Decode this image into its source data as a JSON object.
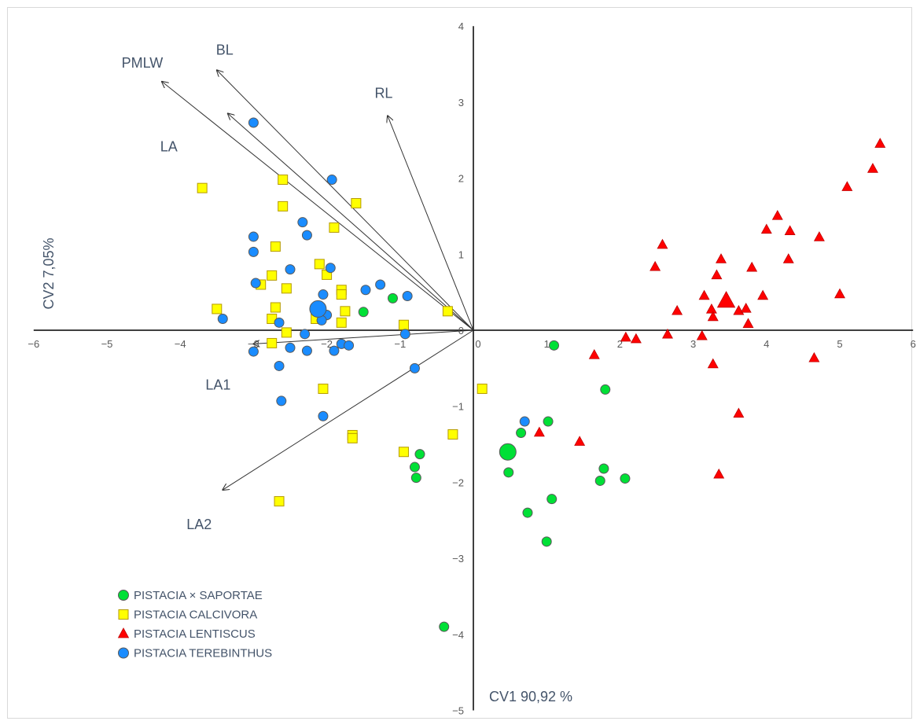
{
  "chart_data": {
    "type": "scatter",
    "xlabel": "CV1 90,92 %",
    "ylabel": "CV2 7,05%",
    "xlim": [
      -6,
      6
    ],
    "ylim": [
      -5,
      4
    ],
    "xticks": [
      "−6",
      "−5",
      "−4",
      "−3",
      "−2",
      "−1",
      "0",
      "1",
      "2",
      "3",
      "4",
      "5",
      "6"
    ],
    "yticks": [
      "4",
      "3",
      "2",
      "1",
      "0",
      "−1",
      "−2",
      "−3",
      "−4",
      "−5"
    ],
    "legend_position": "bottom-left",
    "vectors": [
      {
        "label": "PMLW",
        "x": -4.25,
        "y": 3.27
      },
      {
        "label": "BL",
        "x": -3.5,
        "y": 3.42
      },
      {
        "label": "LA",
        "x": -3.35,
        "y": 2.85
      },
      {
        "label": "RL",
        "x": -1.17,
        "y": 2.82
      },
      {
        "label": "LA1",
        "x": -3.0,
        "y": -0.18
      },
      {
        "label": "LA2",
        "x": -3.42,
        "y": -2.1
      }
    ],
    "series": [
      {
        "name": "PISTACIA × SAPORTAE",
        "color": "#00e036",
        "marker": "circle",
        "points": [
          [
            1.1,
            -0.2
          ],
          [
            1.8,
            -0.78
          ],
          [
            0.65,
            -1.35
          ],
          [
            1.02,
            -1.2
          ],
          [
            0.48,
            -1.87
          ],
          [
            0.74,
            -2.4
          ],
          [
            1.07,
            -2.22
          ],
          [
            1.78,
            -1.82
          ],
          [
            1.73,
            -1.98
          ],
          [
            2.07,
            -1.95
          ],
          [
            1.0,
            -2.78
          ],
          [
            -0.73,
            -1.63
          ],
          [
            -0.8,
            -1.8
          ],
          [
            -0.78,
            -1.94
          ],
          [
            -1.1,
            0.42
          ],
          [
            -1.5,
            0.24
          ],
          [
            -0.4,
            -3.9
          ]
        ],
        "centroid": [
          0.47,
          -1.6
        ]
      },
      {
        "name": "PISTACIA CALCIVORA",
        "color": "#ffff00",
        "marker": "square",
        "points": [
          [
            -3.7,
            1.87
          ],
          [
            -2.6,
            1.98
          ],
          [
            -1.6,
            1.67
          ],
          [
            -2.6,
            1.63
          ],
          [
            -1.9,
            1.35
          ],
          [
            -2.7,
            1.1
          ],
          [
            -2.1,
            0.87
          ],
          [
            -2.0,
            0.73
          ],
          [
            -2.75,
            0.72
          ],
          [
            -2.55,
            0.55
          ],
          [
            -2.9,
            0.6
          ],
          [
            -1.8,
            0.53
          ],
          [
            -1.8,
            0.47
          ],
          [
            -2.7,
            0.3
          ],
          [
            -1.75,
            0.25
          ],
          [
            -2.75,
            0.15
          ],
          [
            -3.5,
            0.28
          ],
          [
            -2.05,
            0.2
          ],
          [
            -2.15,
            0.15
          ],
          [
            -1.8,
            0.1
          ],
          [
            -2.55,
            -0.03
          ],
          [
            -2.75,
            -0.17
          ],
          [
            -0.95,
            0.07
          ],
          [
            -0.35,
            0.25
          ],
          [
            0.12,
            -0.77
          ],
          [
            -2.05,
            -0.77
          ],
          [
            -1.65,
            -1.38
          ],
          [
            -1.65,
            -1.42
          ],
          [
            -0.95,
            -1.6
          ],
          [
            -0.28,
            -1.37
          ],
          [
            -2.65,
            -2.25
          ]
        ],
        "centroid": null
      },
      {
        "name": "PISTACIA LENTISCUS",
        "color": "#ff0000",
        "marker": "triangle",
        "points": [
          [
            5.55,
            2.45
          ],
          [
            5.45,
            2.12
          ],
          [
            5.1,
            1.88
          ],
          [
            4.15,
            1.5
          ],
          [
            4.0,
            1.32
          ],
          [
            4.32,
            1.3
          ],
          [
            4.72,
            1.22
          ],
          [
            2.58,
            1.12
          ],
          [
            3.38,
            0.93
          ],
          [
            4.3,
            0.93
          ],
          [
            2.48,
            0.83
          ],
          [
            3.32,
            0.72
          ],
          [
            3.8,
            0.82
          ],
          [
            3.15,
            0.45
          ],
          [
            3.95,
            0.45
          ],
          [
            5.0,
            0.47
          ],
          [
            2.78,
            0.25
          ],
          [
            3.25,
            0.27
          ],
          [
            3.62,
            0.25
          ],
          [
            3.72,
            0.28
          ],
          [
            3.27,
            0.17
          ],
          [
            3.75,
            0.08
          ],
          [
            3.12,
            -0.08
          ],
          [
            2.08,
            -0.1
          ],
          [
            2.22,
            -0.12
          ],
          [
            2.65,
            -0.06
          ],
          [
            1.65,
            -0.33
          ],
          [
            3.27,
            -0.45
          ],
          [
            4.65,
            -0.37
          ],
          [
            3.62,
            -1.1
          ],
          [
            0.9,
            -1.35
          ],
          [
            1.45,
            -1.47
          ],
          [
            3.35,
            -1.9
          ]
        ],
        "centroid": [
          3.45,
          0.38
        ]
      },
      {
        "name": "PISTACIA TEREBINTHUS",
        "color": "#1a8cff",
        "marker": "circle",
        "points": [
          [
            -3.0,
            2.73
          ],
          [
            -1.93,
            1.98
          ],
          [
            -2.33,
            1.42
          ],
          [
            -2.27,
            1.25
          ],
          [
            -3.0,
            1.23
          ],
          [
            -3.0,
            1.03
          ],
          [
            -2.5,
            0.8
          ],
          [
            -1.95,
            0.82
          ],
          [
            -2.97,
            0.62
          ],
          [
            -1.27,
            0.6
          ],
          [
            -1.47,
            0.53
          ],
          [
            -2.05,
            0.47
          ],
          [
            -0.9,
            0.45
          ],
          [
            -2.1,
            0.28
          ],
          [
            -2.0,
            0.2
          ],
          [
            -3.42,
            0.15
          ],
          [
            -2.07,
            0.13
          ],
          [
            -2.65,
            0.1
          ],
          [
            -0.93,
            -0.05
          ],
          [
            -2.3,
            -0.05
          ],
          [
            -1.8,
            -0.18
          ],
          [
            -1.7,
            -0.2
          ],
          [
            -3.0,
            -0.28
          ],
          [
            -2.5,
            -0.23
          ],
          [
            -2.27,
            -0.27
          ],
          [
            -1.9,
            -0.27
          ],
          [
            -2.65,
            -0.47
          ],
          [
            -0.8,
            -0.5
          ],
          [
            -2.62,
            -0.93
          ],
          [
            -2.05,
            -1.13
          ],
          [
            0.7,
            -1.2
          ]
        ],
        "centroid": [
          -2.12,
          0.28
        ]
      }
    ]
  }
}
